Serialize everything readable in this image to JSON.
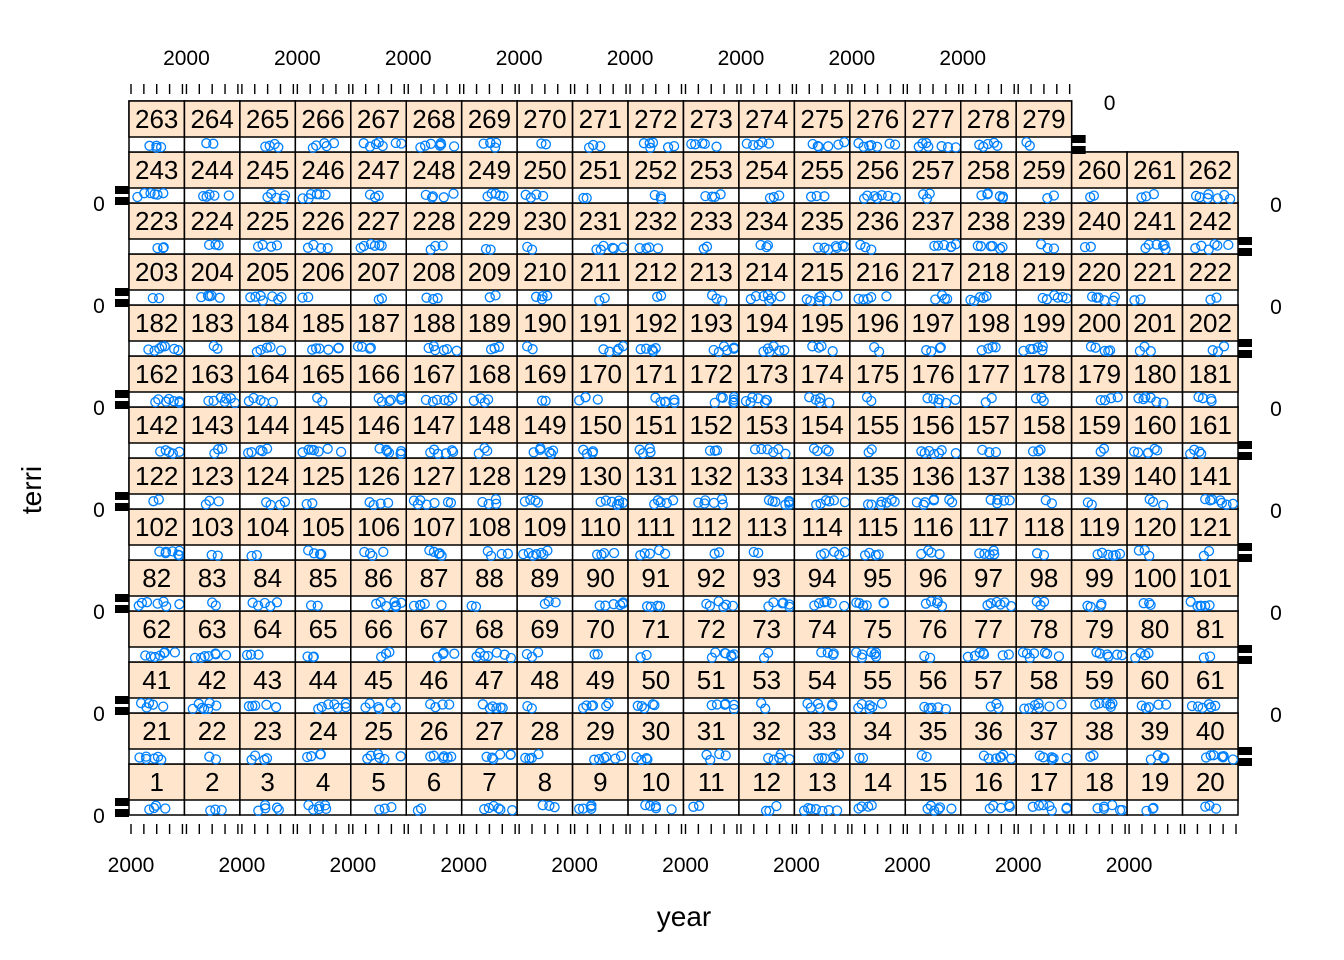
{
  "chart_data": {
    "type": "scatter",
    "layout": "lattice trellis panels",
    "xlabel": "year",
    "ylabel": "terri",
    "x_tick_label": "2000",
    "y_tick_label": "0",
    "strip_color": "#FFE5CC",
    "point_color": "#0080FF",
    "panel_rows": [
      [
        "1",
        "2",
        "3",
        "4",
        "5",
        "6",
        "7",
        "8",
        "9",
        "10",
        "11",
        "12",
        "13",
        "14",
        "15",
        "16",
        "17",
        "18",
        "19",
        "20"
      ],
      [
        "21",
        "22",
        "23",
        "24",
        "25",
        "26",
        "27",
        "28",
        "29",
        "30",
        "31",
        "32",
        "33",
        "34",
        "35",
        "36",
        "37",
        "38",
        "39",
        "40"
      ],
      [
        "41",
        "42",
        "43",
        "44",
        "45",
        "46",
        "47",
        "48",
        "49",
        "50",
        "51",
        "53",
        "54",
        "55",
        "56",
        "57",
        "58",
        "59",
        "60",
        "61"
      ],
      [
        "62",
        "63",
        "64",
        "65",
        "66",
        "67",
        "68",
        "69",
        "70",
        "71",
        "72",
        "73",
        "74",
        "75",
        "76",
        "77",
        "78",
        "79",
        "80",
        "81"
      ],
      [
        "82",
        "83",
        "84",
        "85",
        "86",
        "87",
        "88",
        "89",
        "90",
        "91",
        "92",
        "93",
        "94",
        "95",
        "96",
        "97",
        "98",
        "99",
        "100",
        "101"
      ],
      [
        "102",
        "103",
        "104",
        "105",
        "106",
        "107",
        "108",
        "109",
        "110",
        "111",
        "112",
        "113",
        "114",
        "115",
        "116",
        "117",
        "118",
        "119",
        "120",
        "121"
      ],
      [
        "122",
        "123",
        "124",
        "125",
        "126",
        "127",
        "128",
        "129",
        "130",
        "131",
        "132",
        "133",
        "134",
        "135",
        "136",
        "137",
        "138",
        "139",
        "140",
        "141"
      ],
      [
        "142",
        "143",
        "144",
        "145",
        "146",
        "147",
        "148",
        "149",
        "150",
        "151",
        "152",
        "153",
        "154",
        "155",
        "156",
        "157",
        "158",
        "159",
        "160",
        "161"
      ],
      [
        "162",
        "163",
        "164",
        "165",
        "166",
        "167",
        "168",
        "169",
        "170",
        "171",
        "172",
        "173",
        "174",
        "175",
        "176",
        "177",
        "178",
        "179",
        "180",
        "181"
      ],
      [
        "182",
        "183",
        "184",
        "185",
        "187",
        "188",
        "189",
        "190",
        "191",
        "192",
        "193",
        "194",
        "195",
        "196",
        "197",
        "198",
        "199",
        "200",
        "201",
        "202"
      ],
      [
        "203",
        "204",
        "205",
        "206",
        "207",
        "208",
        "209",
        "210",
        "211",
        "212",
        "213",
        "214",
        "215",
        "216",
        "217",
        "218",
        "219",
        "220",
        "221",
        "222"
      ],
      [
        "223",
        "224",
        "225",
        "226",
        "227",
        "228",
        "229",
        "230",
        "231",
        "232",
        "233",
        "234",
        "235",
        "236",
        "237",
        "238",
        "239",
        "240",
        "241",
        "242"
      ],
      [
        "243",
        "244",
        "245",
        "246",
        "247",
        "248",
        "249",
        "250",
        "251",
        "252",
        "253",
        "254",
        "255",
        "256",
        "257",
        "258",
        "259",
        "260",
        "261",
        "262"
      ],
      [
        "263",
        "264",
        "265",
        "266",
        "267",
        "268",
        "269",
        "270",
        "271",
        "272",
        "273",
        "274",
        "275",
        "276",
        "277",
        "278",
        "279"
      ]
    ]
  }
}
